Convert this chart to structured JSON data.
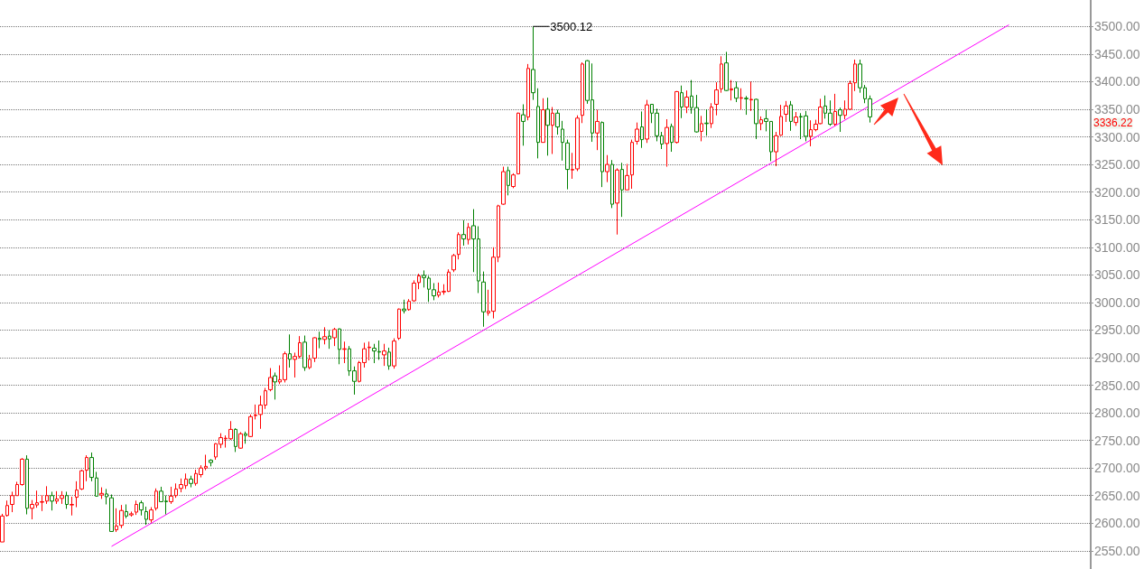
{
  "chart_data": {
    "type": "candlestick",
    "categories": [
      null,
      null,
      null,
      null,
      null,
      null,
      null,
      null,
      null,
      null,
      null,
      null,
      null,
      null,
      null,
      null,
      null,
      null,
      null,
      null,
      null,
      null,
      null,
      null,
      null,
      null,
      null,
      null,
      null,
      null,
      null,
      null,
      null,
      null,
      null,
      null,
      null,
      null,
      null,
      null,
      null,
      null,
      null,
      null,
      null,
      null,
      null,
      null,
      null,
      null,
      null,
      null,
      null,
      null,
      null,
      null,
      null,
      null,
      null,
      null,
      null,
      null,
      null,
      null,
      null,
      null,
      null,
      null,
      null,
      null,
      null,
      null,
      null,
      null,
      null,
      null,
      null,
      null,
      null,
      null,
      null,
      null,
      null,
      null,
      null,
      null,
      null,
      null,
      null,
      null,
      null,
      null,
      null,
      null,
      null,
      null,
      null,
      null,
      null,
      null,
      null,
      null,
      null,
      null,
      null,
      null,
      null,
      null,
      null,
      null,
      null,
      null,
      null,
      null,
      null,
      null,
      null,
      null,
      null,
      null,
      null,
      null,
      null,
      null,
      null,
      null,
      null,
      null,
      null,
      null,
      null,
      null,
      null,
      null,
      null,
      null,
      null,
      null,
      null,
      null,
      null,
      null,
      null,
      null,
      null,
      null,
      null,
      null,
      null,
      null,
      null,
      null,
      null,
      null,
      null,
      null,
      null,
      null,
      null,
      null,
      null,
      null,
      null,
      null,
      null,
      null,
      null,
      null,
      null,
      null,
      null,
      null,
      null,
      null,
      null,
      null,
      null,
      null,
      null,
      null,
      null,
      null,
      null,
      null,
      null,
      null,
      null,
      null,
      null,
      null,
      null,
      null,
      null,
      null,
      null,
      null,
      null,
      null,
      null,
      null,
      null,
      null,
      null,
      null,
      null,
      null,
      null,
      null,
      null,
      null,
      null,
      null,
      null,
      null,
      null,
      null,
      null,
      null,
      null,
      null
    ],
    "series": [
      {
        "type": "candlestick",
        "ohlc": [
          [
            2566,
            2617,
            2566,
            2613
          ],
          [
            2614,
            2641,
            2612,
            2632
          ],
          [
            2634,
            2657,
            2620,
            2650
          ],
          [
            2650,
            2675,
            2650,
            2670
          ],
          [
            2670,
            2718,
            2668,
            2716
          ],
          [
            2716,
            2723,
            2616,
            2627
          ],
          [
            2627,
            2642,
            2607,
            2634
          ],
          [
            2633,
            2659,
            2628,
            2637
          ],
          [
            2638,
            2651,
            2622,
            2639
          ],
          [
            2640,
            2667,
            2635,
            2650
          ],
          [
            2650,
            2657,
            2623,
            2640
          ],
          [
            2640,
            2658,
            2635,
            2644
          ],
          [
            2645,
            2658,
            2635,
            2650
          ],
          [
            2650,
            2657,
            2626,
            2634
          ],
          [
            2633,
            2648,
            2614,
            2634
          ],
          [
            2647,
            2676,
            2629,
            2660
          ],
          [
            2662,
            2697,
            2660,
            2695
          ],
          [
            2696,
            2723,
            2676,
            2719
          ],
          [
            2719,
            2728,
            2676,
            2683
          ],
          [
            2682,
            2693,
            2648,
            2649
          ],
          [
            2651,
            2665,
            2644,
            2654
          ],
          [
            2653,
            2662,
            2634,
            2648
          ],
          [
            2646,
            2652,
            2585,
            2585
          ],
          [
            2588,
            2627,
            2584,
            2595
          ],
          [
            2596,
            2633,
            2591,
            2623
          ],
          [
            2621,
            2634,
            2609,
            2613
          ],
          [
            2615,
            2621,
            2612,
            2617
          ],
          [
            2620,
            2641,
            2615,
            2634
          ],
          [
            2637,
            2641,
            2614,
            2624
          ],
          [
            2621,
            2630,
            2597,
            2607
          ],
          [
            2606,
            2629,
            2601,
            2624
          ],
          [
            2627,
            2663,
            2623,
            2658
          ],
          [
            2658,
            2666,
            2638,
            2639
          ],
          [
            2640,
            2650,
            2616,
            2639
          ],
          [
            2639,
            2666,
            2635,
            2649
          ],
          [
            2650,
            2672,
            2646,
            2662
          ],
          [
            2663,
            2681,
            2656,
            2670
          ],
          [
            2668,
            2690,
            2662,
            2680
          ],
          [
            2680,
            2686,
            2665,
            2672
          ],
          [
            2672,
            2697,
            2668,
            2690
          ],
          [
            2688,
            2705,
            2683,
            2700
          ],
          [
            2700,
            2724,
            2696,
            2703
          ],
          [
            2714,
            2716,
            2703,
            2710
          ],
          [
            2720,
            2745,
            2715,
            2744
          ],
          [
            2743,
            2763,
            2736,
            2755
          ],
          [
            2753,
            2759,
            2737,
            2754
          ],
          [
            2753,
            2785,
            2751,
            2770
          ],
          [
            2770,
            2772,
            2729,
            2739
          ],
          [
            2736,
            2765,
            2735,
            2762
          ],
          [
            2762,
            2766,
            2744,
            2759
          ],
          [
            2757,
            2797,
            2756,
            2793
          ],
          [
            2795,
            2815,
            2788,
            2796
          ],
          [
            2797,
            2831,
            2771,
            2814
          ],
          [
            2814,
            2845,
            2807,
            2840
          ],
          [
            2842,
            2881,
            2839,
            2864
          ],
          [
            2867,
            2873,
            2824,
            2856
          ],
          [
            2856,
            2886,
            2852,
            2860
          ],
          [
            2860,
            2911,
            2855,
            2907
          ],
          [
            2907,
            2942,
            2882,
            2897
          ],
          [
            2897,
            2909,
            2864,
            2902
          ],
          [
            2902,
            2939,
            2899,
            2927
          ],
          [
            2928,
            2940,
            2876,
            2882
          ],
          [
            2882,
            2905,
            2879,
            2897
          ],
          [
            2899,
            2937,
            2892,
            2936
          ],
          [
            2935,
            2947,
            2917,
            2933
          ],
          [
            2933,
            2955,
            2924,
            2938
          ],
          [
            2939,
            2950,
            2916,
            2934
          ],
          [
            2936,
            2954,
            2921,
            2951
          ],
          [
            2952,
            2953,
            2888,
            2915
          ],
          [
            2915,
            2929,
            2890,
            2916
          ],
          [
            2916,
            2921,
            2867,
            2876
          ],
          [
            2876,
            2884,
            2833,
            2857
          ],
          [
            2857,
            2894,
            2855,
            2891
          ],
          [
            2891,
            2927,
            2882,
            2916
          ],
          [
            2918,
            2929,
            2895,
            2919
          ],
          [
            2917,
            2925,
            2890,
            2912
          ],
          [
            2911,
            2931,
            2896,
            2910
          ],
          [
            2905,
            2925,
            2885,
            2912
          ],
          [
            2910,
            2918,
            2878,
            2885
          ],
          [
            2885,
            2935,
            2880,
            2930
          ],
          [
            2935,
            2989,
            2932,
            2988
          ],
          [
            2988,
            3005,
            2980,
            2985
          ],
          [
            2987,
            3006,
            2985,
            3002
          ],
          [
            3003,
            3040,
            3001,
            3035
          ],
          [
            3036,
            3052,
            3024,
            3048
          ],
          [
            3049,
            3058,
            3027,
            3045
          ],
          [
            3044,
            3048,
            3001,
            3024
          ],
          [
            3023,
            3035,
            3004,
            3012
          ],
          [
            3013,
            3036,
            3009,
            3019
          ],
          [
            3019,
            3033,
            3014,
            3020
          ],
          [
            3020,
            3060,
            3019,
            3055
          ],
          [
            3059,
            3088,
            3055,
            3085
          ],
          [
            3087,
            3127,
            3078,
            3123
          ],
          [
            3123,
            3149,
            3103,
            3115
          ],
          [
            3114,
            3144,
            3105,
            3136
          ],
          [
            3139,
            3169,
            3055,
            3115
          ],
          [
            3115,
            3138,
            3017,
            3039
          ],
          [
            3037,
            3056,
            2956,
            2983
          ],
          [
            2981,
            3023,
            2976,
            2984
          ],
          [
            2984,
            3100,
            2971,
            3082
          ],
          [
            3082,
            3177,
            3073,
            3175
          ],
          [
            3178,
            3246,
            3177,
            3237
          ],
          [
            3239,
            3246,
            3194,
            3212
          ],
          [
            3210,
            3234,
            3207,
            3231
          ],
          [
            3233,
            3344,
            3232,
            3343
          ],
          [
            3340,
            3359,
            3284,
            3328
          ],
          [
            3336,
            3432,
            3330,
            3424
          ],
          [
            3422,
            3500.12,
            3367,
            3380
          ],
          [
            3355,
            3388,
            3261,
            3290
          ],
          [
            3290,
            3370,
            3290,
            3349
          ],
          [
            3350,
            3371,
            3266,
            3321
          ],
          [
            3321,
            3354,
            3269,
            3343
          ],
          [
            3343,
            3349,
            3304,
            3318
          ],
          [
            3314,
            3329,
            3257,
            3290
          ],
          [
            3289,
            3295,
            3205,
            3241
          ],
          [
            3240,
            3271,
            3224,
            3241
          ],
          [
            3242,
            3339,
            3238,
            3334
          ],
          [
            3339,
            3435,
            3325,
            3432
          ],
          [
            3438,
            3439,
            3360,
            3366
          ],
          [
            3367,
            3433,
            3291,
            3307
          ],
          [
            3307,
            3349,
            3276,
            3328
          ],
          [
            3326,
            3328,
            3209,
            3237
          ],
          [
            3237,
            3267,
            3218,
            3250
          ],
          [
            3250,
            3258,
            3171,
            3178
          ],
          [
            3180,
            3243,
            3123,
            3240
          ],
          [
            3241,
            3253,
            3155,
            3204
          ],
          [
            3204,
            3251,
            3204,
            3230
          ],
          [
            3231,
            3295,
            3206,
            3290
          ],
          [
            3292,
            3326,
            3286,
            3314
          ],
          [
            3318,
            3346,
            3280,
            3295
          ],
          [
            3296,
            3367,
            3289,
            3358
          ],
          [
            3359,
            3359,
            3325,
            3343
          ],
          [
            3343,
            3351,
            3292,
            3302
          ],
          [
            3302,
            3309,
            3278,
            3287
          ],
          [
            3288,
            3332,
            3246,
            3317
          ],
          [
            3319,
            3324,
            3273,
            3290
          ],
          [
            3290,
            3383,
            3288,
            3382
          ],
          [
            3380,
            3393,
            3334,
            3354
          ],
          [
            3354,
            3384,
            3343,
            3372
          ],
          [
            3374,
            3403,
            3342,
            3353
          ],
          [
            3353,
            3376,
            3308,
            3309
          ],
          [
            3310,
            3338,
            3292,
            3324
          ],
          [
            3325,
            3350,
            3302,
            3324
          ],
          [
            3324,
            3361,
            3316,
            3354
          ],
          [
            3359,
            3399,
            3339,
            3385
          ],
          [
            3387,
            3446,
            3380,
            3432
          ],
          [
            3434,
            3454,
            3383,
            3384
          ],
          [
            3385,
            3403,
            3366,
            3387
          ],
          [
            3389,
            3400,
            3363,
            3370
          ],
          [
            3370,
            3388,
            3349,
            3371
          ],
          [
            3370,
            3374,
            3340,
            3369
          ],
          [
            3367,
            3400,
            3347,
            3368
          ],
          [
            3368,
            3369,
            3296,
            3324
          ],
          [
            3324,
            3337,
            3312,
            3331
          ],
          [
            3333,
            3350,
            3310,
            3328
          ],
          [
            3328,
            3328,
            3256,
            3273
          ],
          [
            3273,
            3309,
            3247,
            3302
          ],
          [
            3303,
            3358,
            3302,
            3337
          ],
          [
            3341,
            3365,
            3327,
            3356
          ],
          [
            3358,
            3365,
            3311,
            3328
          ],
          [
            3326,
            3345,
            3320,
            3336
          ],
          [
            3337,
            3343,
            3296,
            3336
          ],
          [
            3338,
            3347,
            3292,
            3301
          ],
          [
            3301,
            3330,
            3283,
            3313
          ],
          [
            3313,
            3331,
            3310,
            3323
          ],
          [
            3324,
            3369,
            3323,
            3354
          ],
          [
            3356,
            3375,
            3333,
            3343
          ],
          [
            3343,
            3366,
            3320,
            3323
          ],
          [
            3323,
            3378,
            3320,
            3346
          ],
          [
            3349,
            3353,
            3309,
            3339
          ],
          [
            3339,
            3366,
            3332,
            3350
          ],
          [
            3350,
            3402,
            3349,
            3397
          ],
          [
            3398,
            3440,
            3383,
            3432
          ],
          [
            3432,
            3440,
            3380,
            3389
          ],
          [
            3389,
            3394,
            3361,
            3369
          ],
          [
            3369,
            3375,
            3326,
            3336.22
          ],
          null,
          null,
          null,
          null,
          null,
          null,
          null,
          null,
          null,
          null,
          null,
          null,
          null,
          null,
          null,
          null,
          null,
          null,
          null,
          null,
          null,
          null,
          null,
          null,
          null,
          null,
          null,
          null,
          null,
          null,
          null,
          null,
          null,
          null,
          null,
          null,
          null,
          null,
          null,
          null,
          null,
          null,
          null,
          null
        ],
        "colors": [
          "#ff0000",
          "#ff0000",
          "#ff0000",
          "#ff0000",
          "#ff0000",
          "#008000",
          "#ff0000",
          "#ff0000",
          "#ff0000",
          "#ff0000",
          "#008000",
          "#ff0000",
          "#ff0000",
          "#008000",
          "#ff0000",
          "#ff0000",
          "#ff0000",
          "#ff0000",
          "#008000",
          "#008000",
          "#ff0000",
          "#008000",
          "#008000",
          "#ff0000",
          "#ff0000",
          "#008000",
          "#ff0000",
          "#ff0000",
          "#008000",
          "#008000",
          "#ff0000",
          "#ff0000",
          "#008000",
          "#008000",
          "#ff0000",
          "#ff0000",
          "#ff0000",
          "#ff0000",
          "#008000",
          "#ff0000",
          "#ff0000",
          "#ff0000",
          "#008000",
          "#ff0000",
          "#ff0000",
          "#ff0000",
          "#ff0000",
          "#008000",
          "#ff0000",
          "#008000",
          "#ff0000",
          "#ff0000",
          "#ff0000",
          "#ff0000",
          "#ff0000",
          "#008000",
          "#ff0000",
          "#ff0000",
          "#008000",
          "#ff0000",
          "#ff0000",
          "#008000",
          "#ff0000",
          "#ff0000",
          "#008000",
          "#ff0000",
          "#008000",
          "#ff0000",
          "#008000",
          "#ff0000",
          "#008000",
          "#008000",
          "#ff0000",
          "#ff0000",
          "#ff0000",
          "#008000",
          "#008000",
          "#ff0000",
          "#008000",
          "#ff0000",
          "#ff0000",
          "#008000",
          "#ff0000",
          "#ff0000",
          "#ff0000",
          "#008000",
          "#008000",
          "#008000",
          "#ff0000",
          "#ff0000",
          "#ff0000",
          "#ff0000",
          "#ff0000",
          "#008000",
          "#ff0000",
          "#008000",
          "#008000",
          "#008000",
          "#ff0000",
          "#ff0000",
          "#ff0000",
          "#ff0000",
          "#008000",
          "#ff0000",
          "#ff0000",
          "#008000",
          "#ff0000",
          "#008000",
          "#008000",
          "#ff0000",
          "#008000",
          "#ff0000",
          "#008000",
          "#008000",
          "#008000",
          "#ff0000",
          "#ff0000",
          "#ff0000",
          "#008000",
          "#008000",
          "#ff0000",
          "#008000",
          "#ff0000",
          "#008000",
          "#ff0000",
          "#008000",
          "#ff0000",
          "#ff0000",
          "#ff0000",
          "#008000",
          "#ff0000",
          "#008000",
          "#008000",
          "#008000",
          "#ff0000",
          "#008000",
          "#ff0000",
          "#008000",
          "#ff0000",
          "#008000",
          "#008000",
          "#ff0000",
          "#008000",
          "#ff0000",
          "#ff0000",
          "#ff0000",
          "#008000",
          "#ff0000",
          "#008000",
          "#ff0000",
          "#008000",
          "#ff0000",
          "#008000",
          "#ff0000",
          "#008000",
          "#008000",
          "#ff0000",
          "#ff0000",
          "#ff0000",
          "#008000",
          "#ff0000",
          "#008000",
          "#008000",
          "#ff0000",
          "#ff0000",
          "#ff0000",
          "#008000",
          "#008000",
          "#ff0000",
          "#008000",
          "#ff0000",
          "#ff0000",
          "#ff0000",
          "#008000",
          "#008000",
          "#008000",
          null,
          null,
          null,
          null,
          null,
          null,
          null,
          null,
          null,
          null,
          null,
          null,
          null,
          null,
          null,
          null,
          null,
          null,
          null,
          null,
          null,
          null,
          null,
          null,
          null,
          null,
          null,
          null,
          null,
          null,
          null,
          null,
          null,
          null,
          null,
          null,
          null,
          null,
          null,
          null,
          null,
          null,
          null,
          null
        ]
      },
      {
        "type": "line",
        "color": "#ff00ff",
        "values": [
          null,
          null,
          null,
          null,
          null,
          null,
          null,
          null,
          null,
          null,
          null,
          null,
          null,
          null,
          null,
          null,
          null,
          null,
          null,
          null,
          null,
          null,
          2558,
          null,
          null,
          null,
          null,
          null,
          null,
          null,
          null,
          null,
          null,
          null,
          null,
          null,
          null,
          null,
          null,
          null,
          null,
          null,
          null,
          null,
          null,
          null,
          null,
          null,
          null,
          null,
          null,
          null,
          null,
          null,
          null,
          null,
          null,
          null,
          null,
          null,
          null,
          null,
          null,
          null,
          null,
          null,
          null,
          null,
          null,
          null,
          null,
          null,
          null,
          null,
          null,
          null,
          null,
          null,
          null,
          null,
          null,
          null,
          null,
          null,
          null,
          null,
          null,
          null,
          null,
          null,
          null,
          null,
          null,
          null,
          null,
          null,
          null,
          null,
          null,
          null,
          null,
          null,
          null,
          null,
          null,
          null,
          null,
          null,
          null,
          null,
          null,
          null,
          null,
          null,
          null,
          null,
          null,
          null,
          null,
          null,
          null,
          null,
          null,
          null,
          null,
          null,
          null,
          null,
          null,
          null,
          null,
          null,
          null,
          null,
          null,
          null,
          null,
          null,
          null,
          null,
          null,
          null,
          null,
          null,
          null,
          null,
          null,
          null,
          null,
          null,
          null,
          null,
          null,
          null,
          null,
          null,
          null,
          null,
          null,
          null,
          null,
          null,
          null,
          null,
          null,
          null,
          null,
          null,
          null,
          null,
          null,
          null,
          null,
          null,
          null,
          null,
          null,
          null,
          null,
          null,
          null,
          null,
          null,
          null,
          null,
          null,
          null,
          null,
          null,
          null,
          null,
          null,
          null,
          null,
          null,
          null,
          null,
          null,
          null,
          null,
          null,
          null,
          null,
          3503,
          null,
          null,
          null,
          null,
          null,
          null,
          null,
          null,
          null,
          null,
          null,
          null,
          null,
          null,
          null,
          null
        ]
      }
    ],
    "ylim": [
      2517,
      3548
    ],
    "yticks": [
      {
        "value": 2550,
        "label": "2550.00"
      },
      {
        "value": 2600,
        "label": "2600.00"
      },
      {
        "value": 2650,
        "label": "2650.00"
      },
      {
        "value": 2700,
        "label": "2700.00"
      },
      {
        "value": 2750,
        "label": "2750.00"
      },
      {
        "value": 2800,
        "label": "2800.00"
      },
      {
        "value": 2850,
        "label": "2850.00"
      },
      {
        "value": 2900,
        "label": "2900.00"
      },
      {
        "value": 2950,
        "label": "2950.00"
      },
      {
        "value": 3000,
        "label": "3000.00"
      },
      {
        "value": 3050,
        "label": "3050.00"
      },
      {
        "value": 3100,
        "label": "3100.00"
      },
      {
        "value": 3150,
        "label": "3150.00"
      },
      {
        "value": 3200,
        "label": "3200.00"
      },
      {
        "value": 3250,
        "label": "3250.00"
      },
      {
        "value": 3300,
        "label": "3300.00"
      },
      {
        "value": 3350,
        "label": "3350.00"
      },
      {
        "value": 3400,
        "label": "3400.00"
      },
      {
        "value": 3450,
        "label": "3450.00"
      },
      {
        "value": 3500,
        "label": "3500.00"
      }
    ],
    "grid": "y",
    "tick_labels": "y",
    "annotations": [
      "3500.12",
      "3336.22"
    ]
  }
}
